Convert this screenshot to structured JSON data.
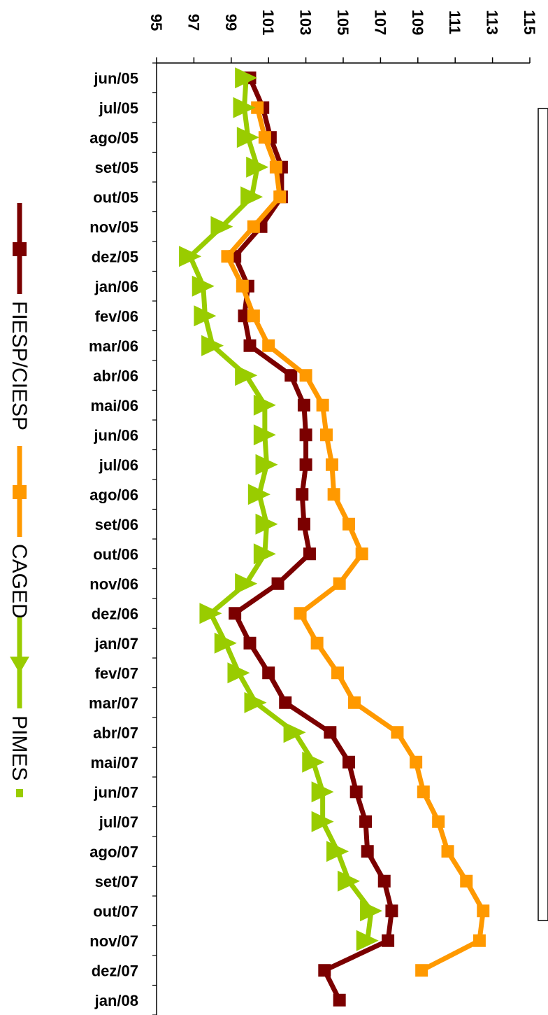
{
  "chart_data": {
    "type": "line",
    "orientation": "rotated-90-clockwise",
    "categories": [
      "jun/05",
      "jul/05",
      "ago/05",
      "set/05",
      "out/05",
      "nov/05",
      "dez/05",
      "jan/06",
      "fev/06",
      "mar/06",
      "abr/06",
      "mai/06",
      "jun/06",
      "jul/06",
      "ago/06",
      "set/06",
      "out/06",
      "nov/06",
      "dez/06",
      "jan/07",
      "fev/07",
      "mar/07",
      "abr/07",
      "mai/07",
      "jun/07",
      "jul/07",
      "ago/07",
      "set/07",
      "out/07",
      "nov/07",
      "dez/07",
      "jan/08"
    ],
    "ylim": [
      95,
      115
    ],
    "yticks": [
      "95",
      "97",
      "99",
      "101",
      "103",
      "105",
      "107",
      "109",
      "111",
      "113",
      "115"
    ],
    "grid": false,
    "legend_placement": "left",
    "series": [
      {
        "name": "FIESP/CIESP",
        "color": "#7b0000",
        "marker": "square",
        "values": [
          100.0,
          100.7,
          101.1,
          101.7,
          101.7,
          100.6,
          99.2,
          99.9,
          99.7,
          100.0,
          102.2,
          102.9,
          103.0,
          103.0,
          102.8,
          102.9,
          103.2,
          101.5,
          99.2,
          100.0,
          101.0,
          101.9,
          104.3,
          105.3,
          105.7,
          106.2,
          106.3,
          107.2,
          107.6,
          107.4,
          104.0,
          104.8
        ]
      },
      {
        "name": "CAGED",
        "color": "#ff9900",
        "marker": "square",
        "values": [
          null,
          100.4,
          100.8,
          101.4,
          101.6,
          100.2,
          98.8,
          99.6,
          100.2,
          101.0,
          103.0,
          103.9,
          104.1,
          104.4,
          104.5,
          105.3,
          106.0,
          104.8,
          102.7,
          103.6,
          104.7,
          105.6,
          107.9,
          108.9,
          109.3,
          110.1,
          110.6,
          111.6,
          112.5,
          112.3,
          109.2,
          null
        ],
        "line_end_offset": 0
      },
      {
        "name": "PIMES",
        "color": "#99cc00",
        "marker": "triangle",
        "values": [
          99.8,
          99.7,
          99.9,
          100.4,
          100.1,
          98.5,
          96.8,
          97.5,
          97.6,
          98.0,
          99.8,
          100.8,
          100.8,
          100.9,
          100.5,
          100.9,
          100.8,
          99.8,
          97.9,
          98.7,
          99.4,
          100.3,
          102.4,
          103.4,
          103.9,
          103.9,
          104.7,
          105.3,
          106.5,
          106.3,
          null,
          null
        ]
      }
    ]
  }
}
